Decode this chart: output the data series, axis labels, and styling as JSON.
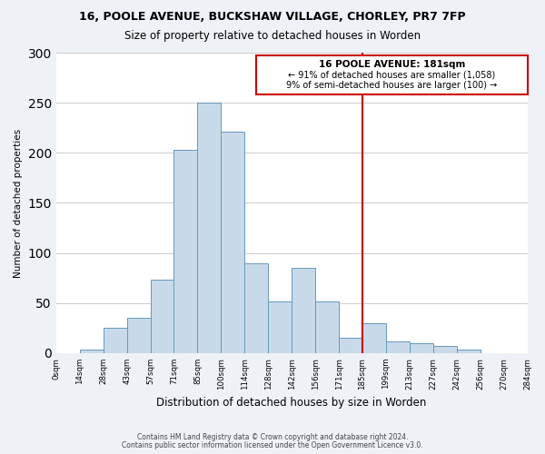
{
  "title1": "16, POOLE AVENUE, BUCKSHAW VILLAGE, CHORLEY, PR7 7FP",
  "title2": "Size of property relative to detached houses in Worden",
  "xlabel": "Distribution of detached houses by size in Worden",
  "ylabel": "Number of detached properties",
  "bar_color": "#c8daea",
  "bar_edge_color": "#6699bb",
  "bin_labels": [
    "0sqm",
    "14sqm",
    "28sqm",
    "43sqm",
    "57sqm",
    "71sqm",
    "85sqm",
    "100sqm",
    "114sqm",
    "128sqm",
    "142sqm",
    "156sqm",
    "171sqm",
    "185sqm",
    "199sqm",
    "213sqm",
    "227sqm",
    "242sqm",
    "256sqm",
    "270sqm",
    "284sqm"
  ],
  "counts": [
    0,
    4,
    25,
    35,
    73,
    203,
    250,
    221,
    90,
    52,
    85,
    52,
    15,
    30,
    12,
    10,
    7,
    4,
    0,
    0
  ],
  "vline_after_bar": 13,
  "vline_color": "#cc0000",
  "ylim": [
    0,
    300
  ],
  "yticks": [
    0,
    50,
    100,
    150,
    200,
    250,
    300
  ],
  "annotation_title": "16 POOLE AVENUE: 181sqm",
  "annotation_line1": "← 91% of detached houses are smaller (1,058)",
  "annotation_line2": "9% of semi-detached houses are larger (100) →",
  "footnote1": "Contains HM Land Registry data © Crown copyright and database right 2024.",
  "footnote2": "Contains public sector information licensed under the Open Government Licence v3.0.",
  "bg_color": "#eef2f7",
  "plot_bg_color": "#ffffff"
}
